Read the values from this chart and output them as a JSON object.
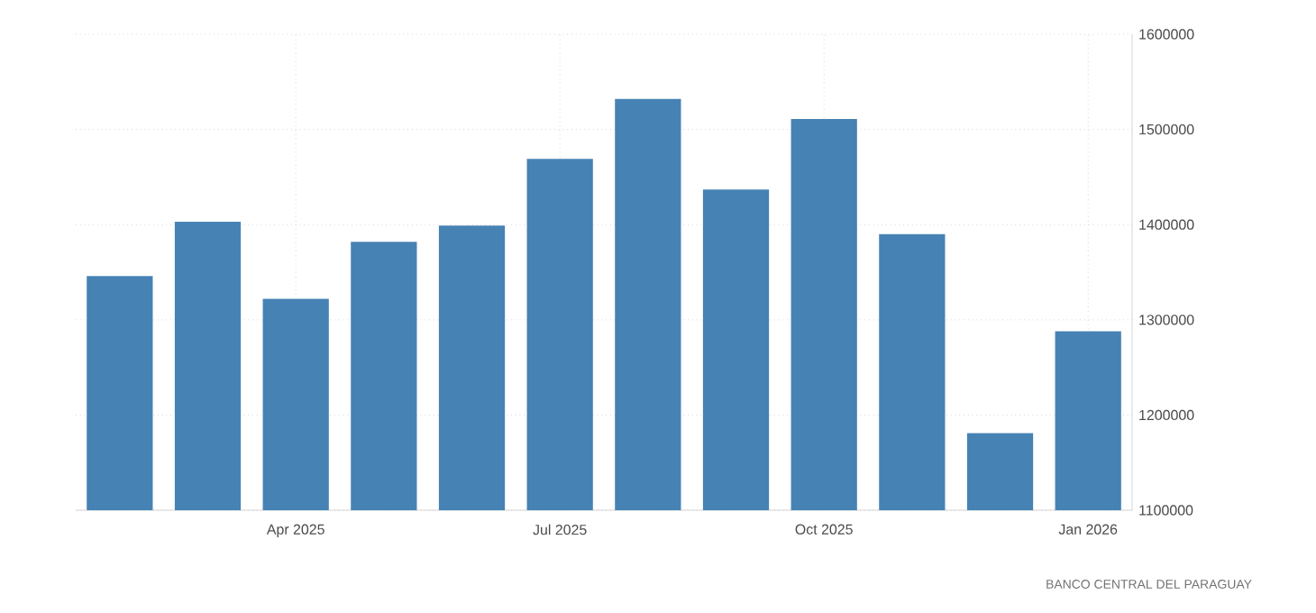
{
  "chart_data": {
    "type": "bar",
    "categories": [
      null,
      null,
      "Apr 2025",
      null,
      null,
      "Jul 2025",
      null,
      null,
      "Oct 2025",
      null,
      null,
      "Jan 2026"
    ],
    "values": [
      1346000,
      1403000,
      1322000,
      1382000,
      1399000,
      1469000,
      1532000,
      1437000,
      1511000,
      1390000,
      1181000,
      1288000
    ],
    "color": "#4682b4",
    "ylim": [
      1100000,
      1600000
    ],
    "yticks": [
      1100000,
      1200000,
      1300000,
      1400000,
      1500000,
      1600000
    ],
    "grid": true,
    "annotations": [
      "BANCO CENTRAL DEL PARAGUAY"
    ]
  }
}
